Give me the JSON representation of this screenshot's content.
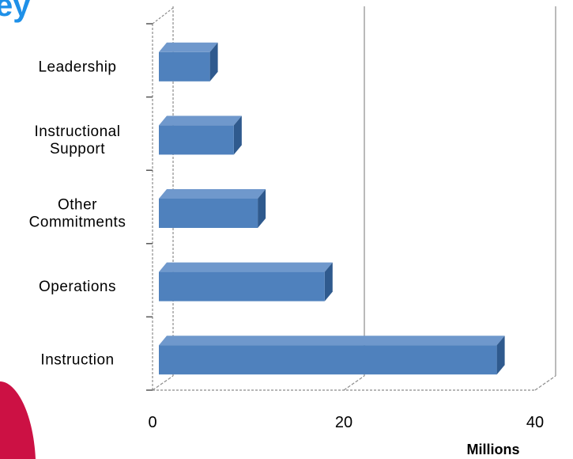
{
  "title_fragment": "ey",
  "colors": {
    "bar_front": "#4f81bd",
    "bar_top": "#6f98cc",
    "bar_side": "#2f5a8e",
    "title": "#1e90e8",
    "accent": "#cc1144",
    "grid": "#8c8c8c"
  },
  "chart_data": {
    "type": "bar",
    "orientation": "horizontal",
    "categories": [
      [
        "Leadership"
      ],
      [
        "Instructional",
        "Support"
      ],
      [
        "Other",
        "Commitments"
      ],
      [
        "Operations"
      ],
      [
        "Instruction"
      ]
    ],
    "values": [
      6,
      8.5,
      11,
      18,
      36
    ],
    "xlim": [
      0,
      40
    ],
    "xticks": [
      "0",
      "20",
      "40"
    ],
    "unit_label": "Millions",
    "grid": true
  }
}
